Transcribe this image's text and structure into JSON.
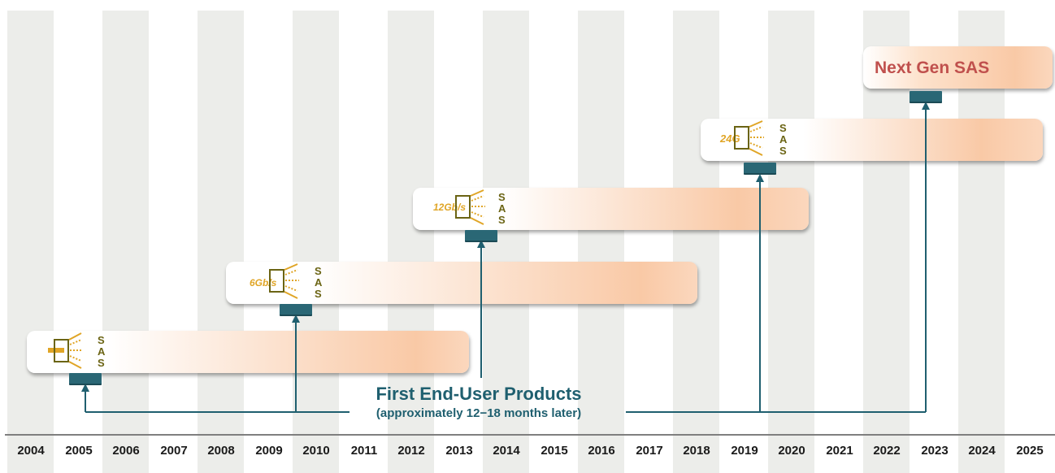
{
  "timeline": {
    "years": [
      "2004",
      "2005",
      "2006",
      "2007",
      "2008",
      "2009",
      "2010",
      "2011",
      "2012",
      "2013",
      "2014",
      "2015",
      "2016",
      "2017",
      "2018",
      "2019",
      "2020",
      "2021",
      "2022",
      "2023",
      "2024",
      "2025"
    ]
  },
  "generations": [
    {
      "id": "sas-3g",
      "logo_speed": "",
      "logo_letters": [
        "S",
        "A",
        "S"
      ]
    },
    {
      "id": "sas-6g",
      "logo_speed": "6Gb/s",
      "logo_letters": [
        "S",
        "A",
        "S"
      ]
    },
    {
      "id": "sas-12g",
      "logo_speed": "12Gb/s",
      "logo_letters": [
        "S",
        "A",
        "S"
      ]
    },
    {
      "id": "sas-24g",
      "logo_speed": "24G",
      "logo_letters": [
        "S",
        "A",
        "S"
      ]
    },
    {
      "id": "next-gen",
      "title": "Next Gen SAS"
    }
  ],
  "caption": {
    "main": "First End-User Products",
    "sub": "(approximately 12−18 months later)"
  },
  "colors": {
    "band": "#ecedea",
    "marker": "#2a6775",
    "connector": "#1f5f6f",
    "bar_peach": "#f9c9a6",
    "logo_gold": "#e0a526",
    "logo_letters": "#6b6414",
    "next_gen_title": "#c0504d"
  },
  "icons": {
    "logo": "sas-signal-icon"
  }
}
